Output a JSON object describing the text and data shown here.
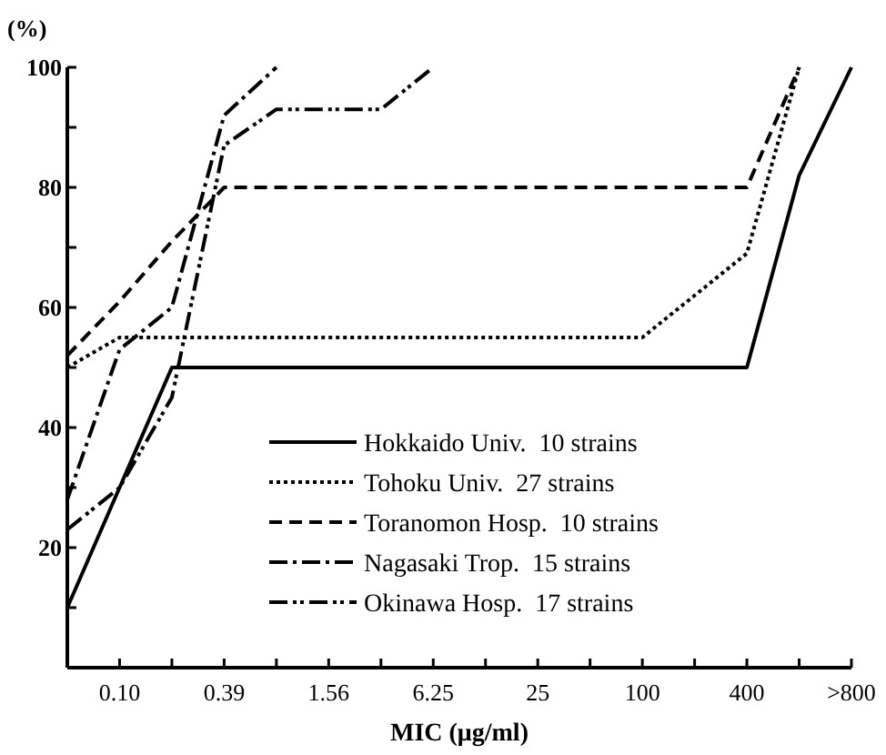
{
  "chart_data": {
    "type": "line",
    "xlabel": "MIC (μg/ml)",
    "ylabel": "(%)",
    "categories": [
      null,
      "0.10",
      null,
      "0.39",
      null,
      "1.56",
      null,
      "6.25",
      null,
      "25",
      null,
      "100",
      null,
      "400",
      null,
      ">800"
    ],
    "ylim": [
      0,
      100
    ],
    "yticks": [
      {
        "value": 10,
        "label": null
      },
      20,
      {
        "value": 30,
        "label": null
      },
      40,
      {
        "value": 50,
        "label": null
      },
      60,
      {
        "value": 70,
        "label": null
      },
      80,
      {
        "value": 90,
        "label": null
      },
      100
    ],
    "grid": false,
    "legend": "bottom right",
    "marker": "none",
    "series": [
      {
        "name": "Hokkaido Univ.  10 strains",
        "color": "#000000",
        "line_style": "solid",
        "values": [
          10,
          30,
          50,
          50,
          50,
          50,
          50,
          50,
          50,
          50,
          50,
          50,
          50,
          50,
          82,
          100
        ]
      },
      {
        "name": "Tohoku Univ.  27 strains",
        "color": "#000000",
        "line_style": "dotted",
        "values": [
          50,
          55,
          55,
          55,
          55,
          55,
          55,
          55,
          55,
          55,
          55,
          55,
          62,
          69,
          100,
          null
        ]
      },
      {
        "name": "Toranomon Hosp.  10 strains",
        "color": "#000000",
        "line_style": "dashed",
        "values": [
          52,
          61,
          71,
          80,
          80,
          80,
          80,
          80,
          80,
          80,
          80,
          80,
          80,
          80,
          100,
          null
        ]
      },
      {
        "name": "Nagasaki Trop.  15 strains",
        "color": "#000000",
        "line_style": "dashdot",
        "values": [
          28,
          53,
          60,
          92,
          100,
          null,
          null,
          null,
          null,
          null,
          null,
          null,
          null,
          null,
          null,
          null
        ]
      },
      {
        "name": "Okinawa Hosp.  17 strains",
        "color": "#000000",
        "line_style": "dashdotdot",
        "values": [
          23,
          30,
          45,
          87,
          93,
          93,
          93,
          100,
          null,
          null,
          null,
          null,
          null,
          null,
          null,
          null
        ]
      }
    ]
  }
}
